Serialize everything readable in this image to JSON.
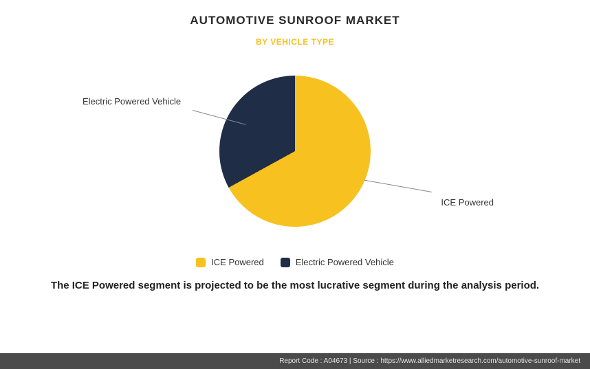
{
  "title": "AUTOMOTIVE SUNROOF MARKET",
  "subtitle": "BY VEHICLE TYPE",
  "subtitle_color": "#f7c21f",
  "chart": {
    "type": "pie",
    "slices": [
      {
        "label": "ICE Powered",
        "value": 67,
        "color": "#f7c21f"
      },
      {
        "label": "Electric Powered Vehicle",
        "value": 33,
        "color": "#1f2d47"
      }
    ],
    "background_color": "#ffffff",
    "start_angle": 0
  },
  "legend": [
    {
      "label": "ICE Powered",
      "color": "#f7c21f"
    },
    {
      "label": "Electric Powered Vehicle",
      "color": "#1f2d47"
    }
  ],
  "caption": "The ICE Powered segment is projected to be the most lucrative segment during the analysis period.",
  "footer": {
    "report_code": "Report Code : A04673",
    "separator": "  |  ",
    "source": "Source : https://www.alliedmarketresearch.com/automotive-sunroof-market"
  }
}
